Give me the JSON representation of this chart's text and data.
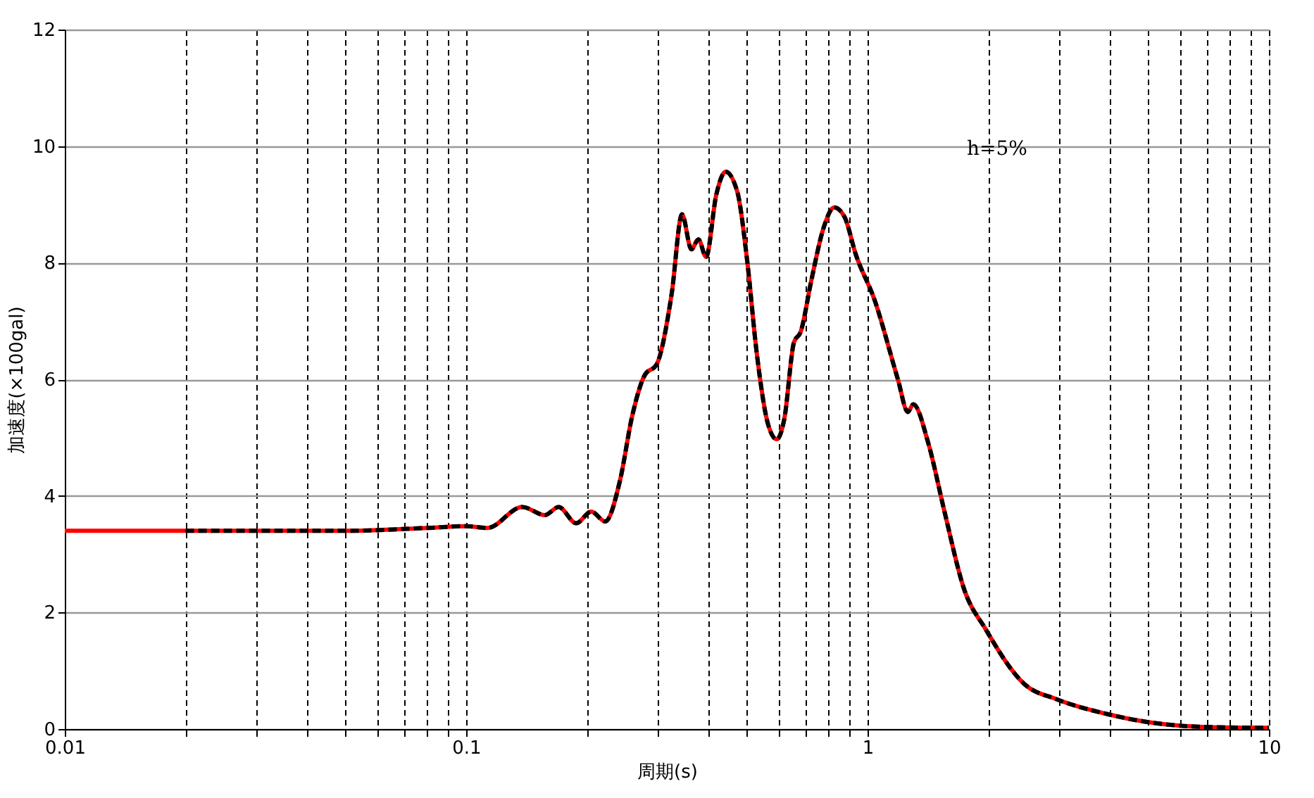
{
  "chart_data": {
    "type": "line",
    "xlabel": "周期(s)",
    "ylabel": "加速度(×100gal)",
    "log": "x",
    "xlim": [
      0.01,
      10
    ],
    "xticks": [
      0.01,
      {
        "value": 0.02,
        "label": null
      },
      {
        "value": 0.03,
        "label": null
      },
      {
        "value": 0.04,
        "label": null
      },
      {
        "value": 0.05,
        "label": null
      },
      {
        "value": 0.06,
        "label": null
      },
      {
        "value": 0.07,
        "label": null
      },
      {
        "value": 0.08,
        "label": null
      },
      {
        "value": 0.09,
        "label": null
      },
      0.1,
      {
        "value": 0.2,
        "label": null
      },
      {
        "value": 0.3,
        "label": null
      },
      {
        "value": 0.4,
        "label": null
      },
      {
        "value": 0.5,
        "label": null
      },
      {
        "value": 0.6,
        "label": null
      },
      {
        "value": 0.7,
        "label": null
      },
      {
        "value": 0.8,
        "label": null
      },
      {
        "value": 0.9,
        "label": null
      },
      1,
      {
        "value": 2,
        "label": null
      },
      {
        "value": 3,
        "label": null
      },
      {
        "value": 4,
        "label": null
      },
      {
        "value": 5,
        "label": null
      },
      {
        "value": 6,
        "label": null
      },
      {
        "value": 7,
        "label": null
      },
      {
        "value": 8,
        "label": null
      },
      {
        "value": 9,
        "label": null
      },
      10
    ],
    "ylim": [
      0,
      12
    ],
    "yticks": [
      0,
      2,
      4,
      6,
      8,
      10,
      12
    ],
    "grid": true,
    "annotations": [
      "h=5%"
    ],
    "series": [
      {
        "color": "#ff0000",
        "line_style": "solid",
        "x": [
          0.01,
          0.02,
          0.05,
          0.08,
          0.1,
          0.113,
          0.138,
          0.157,
          0.17,
          0.188,
          0.205,
          0.222,
          0.242,
          0.259,
          0.279,
          0.298,
          0.325,
          0.345,
          0.364,
          0.379,
          0.396,
          0.42,
          0.443,
          0.474,
          0.501,
          0.53,
          0.565,
          0.594,
          0.62,
          0.656,
          0.681,
          0.725,
          0.778,
          0.826,
          0.877,
          0.935,
          1.04,
          1.19,
          1.26,
          1.3,
          1.42,
          1.55,
          1.74,
          1.97,
          2.46,
          2.96,
          3.94,
          4.88,
          6.68,
          10
        ],
        "values": [
          3.4,
          3.4,
          3.4,
          3.45,
          3.48,
          3.45,
          3.81,
          3.67,
          3.81,
          3.53,
          3.73,
          3.56,
          4.28,
          5.36,
          6.08,
          6.25,
          7.46,
          8.83,
          8.23,
          8.4,
          8.1,
          9.17,
          9.56,
          9.21,
          8.05,
          6.43,
          5.23,
          4.97,
          5.31,
          6.64,
          6.81,
          7.71,
          8.61,
          8.95,
          8.78,
          8.14,
          7.37,
          6.0,
          5.44,
          5.57,
          4.88,
          3.77,
          2.4,
          1.71,
          0.77,
          0.51,
          0.26,
          0.13,
          0.04,
          0.02
        ]
      },
      {
        "color": "#000000",
        "line_style": "dashed",
        "x": [
          0.02,
          0.05,
          0.08,
          0.1,
          0.113,
          0.138,
          0.157,
          0.17,
          0.188,
          0.205,
          0.222,
          0.242,
          0.259,
          0.279,
          0.298,
          0.325,
          0.345,
          0.364,
          0.379,
          0.396,
          0.42,
          0.443,
          0.474,
          0.501,
          0.53,
          0.565,
          0.594,
          0.62,
          0.656,
          0.681,
          0.725,
          0.778,
          0.826,
          0.877,
          0.935,
          1.04,
          1.19,
          1.26,
          1.3,
          1.42,
          1.55,
          1.74,
          1.97,
          2.46,
          2.96,
          3.94,
          4.88,
          6.68,
          10
        ],
        "values": [
          3.4,
          3.4,
          3.45,
          3.48,
          3.45,
          3.81,
          3.67,
          3.81,
          3.53,
          3.73,
          3.56,
          4.28,
          5.36,
          6.08,
          6.25,
          7.46,
          8.83,
          8.23,
          8.4,
          8.1,
          9.17,
          9.56,
          9.21,
          8.05,
          6.43,
          5.23,
          4.97,
          5.31,
          6.64,
          6.81,
          7.71,
          8.61,
          8.95,
          8.78,
          8.14,
          7.37,
          6.0,
          5.44,
          5.57,
          4.88,
          3.77,
          2.4,
          1.71,
          0.77,
          0.51,
          0.26,
          0.13,
          0.04,
          0.02
        ]
      }
    ]
  }
}
